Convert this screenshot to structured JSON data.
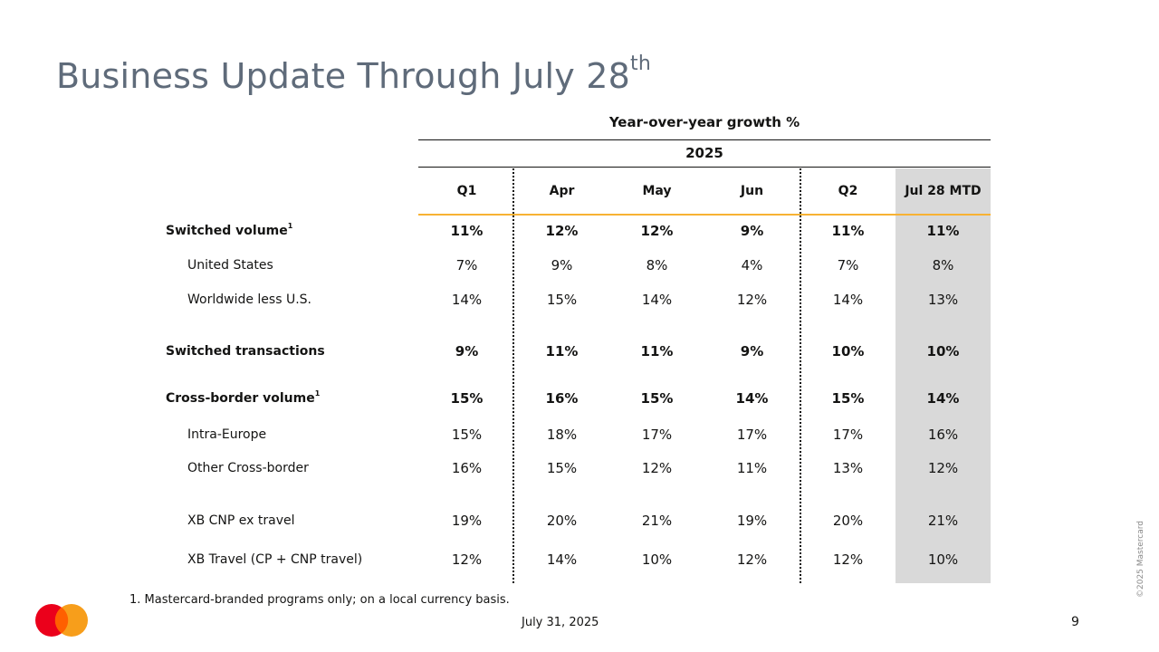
{
  "title": "Business Update Through July 28",
  "title_sup": "th",
  "header": {
    "yoy_label": "Year-over-year growth %",
    "year_label": "2025"
  },
  "columns": [
    "Q1",
    "Apr",
    "May",
    "Jun",
    "Q2",
    "Jul 28 MTD"
  ],
  "rows": [
    {
      "label": "Switched volume",
      "sup": "1",
      "bold": true,
      "values": [
        "11%",
        "12%",
        "12%",
        "9%",
        "11%",
        "11%"
      ]
    },
    {
      "label": "United States",
      "sup": "",
      "bold": false,
      "values": [
        "7%",
        "9%",
        "8%",
        "4%",
        "7%",
        "8%"
      ]
    },
    {
      "label": "Worldwide less U.S.",
      "sup": "",
      "bold": false,
      "values": [
        "14%",
        "15%",
        "14%",
        "12%",
        "14%",
        "13%"
      ]
    },
    {
      "label": "Switched transactions",
      "sup": "",
      "bold": true,
      "values": [
        "9%",
        "11%",
        "11%",
        "9%",
        "10%",
        "10%"
      ]
    },
    {
      "label": "Cross-border volume",
      "sup": "1",
      "bold": true,
      "values": [
        "15%",
        "16%",
        "15%",
        "14%",
        "15%",
        "14%"
      ]
    },
    {
      "label": "Intra-Europe",
      "sup": "",
      "bold": false,
      "values": [
        "15%",
        "18%",
        "17%",
        "17%",
        "17%",
        "16%"
      ]
    },
    {
      "label": "Other Cross-border",
      "sup": "",
      "bold": false,
      "values": [
        "16%",
        "15%",
        "12%",
        "11%",
        "13%",
        "12%"
      ]
    },
    {
      "label": "XB CNP ex travel",
      "sup": "",
      "bold": false,
      "values": [
        "19%",
        "20%",
        "21%",
        "19%",
        "20%",
        "21%"
      ]
    },
    {
      "label": "XB Travel (CP + CNP travel)",
      "sup": "",
      "bold": false,
      "values": [
        "12%",
        "14%",
        "10%",
        "12%",
        "12%",
        "10%"
      ]
    }
  ],
  "footnote": "1.  Mastercard-branded programs only; on a local currency basis.",
  "footer": {
    "date": "July 31, 2025",
    "page": "9",
    "copyright": "©2025 Mastercard"
  },
  "colors": {
    "title": "#5f6b7a",
    "accent_yellow": "#f7b233",
    "mtd_bg": "#d9d9d9",
    "logo_red": "#eb001b",
    "logo_orange": "#f79e1b",
    "logo_overlap": "#ff5f00"
  },
  "icons": {
    "logo": "mastercard-logo-icon"
  }
}
